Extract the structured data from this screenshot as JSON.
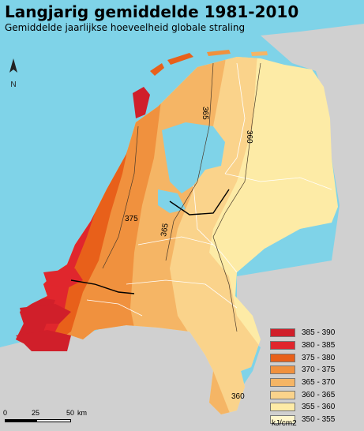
{
  "header": {
    "title": "Langjarig gemiddelde 1981-2010",
    "subtitle": "Gemiddelde jaarlijkse hoeveelheid globale straling"
  },
  "north_arrow": {
    "letter": "N"
  },
  "legend": {
    "items": [
      {
        "label": "385 - 390",
        "color": "#d01f2a"
      },
      {
        "label": "380 - 385",
        "color": "#e0262d"
      },
      {
        "label": "375 - 380",
        "color": "#e8601a"
      },
      {
        "label": "370 - 375",
        "color": "#f0913e"
      },
      {
        "label": "365 - 370",
        "color": "#f5b565"
      },
      {
        "label": "360 - 365",
        "color": "#fad38b"
      },
      {
        "label": "355 - 360",
        "color": "#fdeba6"
      },
      {
        "label": "350 - 355",
        "color": "#fff6cc"
      }
    ],
    "unit": "kJ/cm2"
  },
  "scale": {
    "ticks": [
      "0",
      "25",
      "50"
    ],
    "unit": "km"
  },
  "isolines": [
    {
      "label": "375"
    },
    {
      "label": "365"
    },
    {
      "label": "360"
    },
    {
      "label": "365"
    },
    {
      "label": "360"
    }
  ],
  "colors": {
    "sea": "#7fd3e8",
    "land_outside": "#d0d0d0",
    "border_lines": "#ffffff"
  }
}
